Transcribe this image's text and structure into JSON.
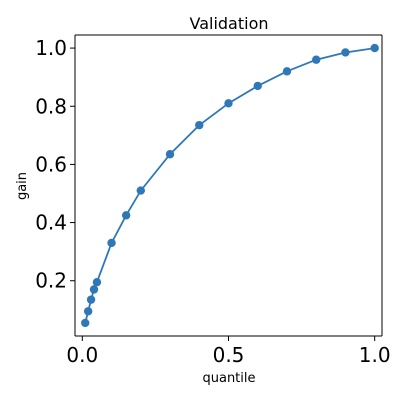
{
  "chart_data": {
    "type": "line",
    "title": "Validation",
    "xlabel": "quantile",
    "ylabel": "gain",
    "xlim": [
      -0.025,
      1.025
    ],
    "ylim": [
      0.01,
      1.045
    ],
    "xticks": [
      0.0,
      0.5,
      1.0
    ],
    "xtick_labels": [
      "0.0",
      "0.5",
      "1.0"
    ],
    "yticks": [
      0.2,
      0.4,
      0.6,
      0.8,
      1.0
    ],
    "ytick_labels": [
      "0.2",
      "0.4",
      "0.6",
      "0.8",
      "1.0"
    ],
    "grid": false,
    "series": [
      {
        "color": "#2f78b7",
        "marker": "circle",
        "x": [
          0.01,
          0.02,
          0.03,
          0.04,
          0.05,
          0.1,
          0.15,
          0.2,
          0.3,
          0.4,
          0.5,
          0.6,
          0.7,
          0.8,
          0.9,
          1.0
        ],
        "y": [
          0.055,
          0.095,
          0.135,
          0.17,
          0.195,
          0.33,
          0.425,
          0.51,
          0.635,
          0.735,
          0.81,
          0.87,
          0.92,
          0.96,
          0.985,
          1.0
        ]
      }
    ]
  }
}
